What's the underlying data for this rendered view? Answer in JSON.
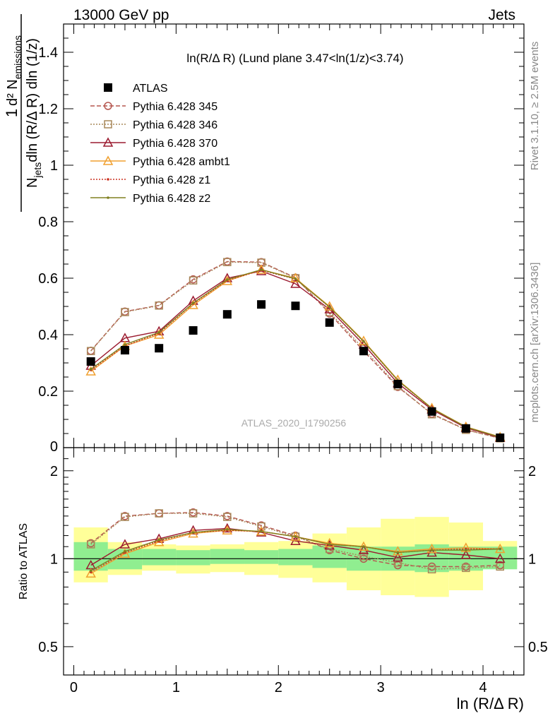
{
  "header": {
    "left": "13000 GeV pp",
    "right": "Jets",
    "side_top": "Rivet 3.1.10, ≥ 2.5M events",
    "side_bottom": "mcplots.cern.ch [arXiv:1306.3436]"
  },
  "chart_data": [
    {
      "type": "scatter",
      "title": "ln(R/Δ R) (Lund plane 3.47<ln(1/z)<3.74)",
      "ylabel": "1/N_jets dln (R/Δ R) dln (1/z) d² N_emissions",
      "xlabel": "ln (R/Δ R)",
      "watermark": "ATLAS_2020_I1790256",
      "xlim": [
        -0.1,
        4.4
      ],
      "ylim": [
        0,
        1.5
      ],
      "yticks": [
        0.2,
        0.4,
        0.6,
        0.8,
        1,
        1.2,
        1.4
      ],
      "legend_position": "top-left",
      "x": [
        0.167,
        0.5,
        0.833,
        1.167,
        1.5,
        1.833,
        2.167,
        2.5,
        2.833,
        3.167,
        3.5,
        3.833,
        4.167
      ],
      "series": [
        {
          "name": "ATLAS",
          "color": "#000000",
          "marker": "square",
          "line": "none",
          "values": [
            0.305,
            0.345,
            0.352,
            0.415,
            0.472,
            0.507,
            0.502,
            0.443,
            0.342,
            0.225,
            0.128,
            0.068,
            0.035
          ]
        },
        {
          "name": "Pythia 6.428 345",
          "color": "#b5564f",
          "marker": "circle",
          "line": "dashed",
          "values": [
            0.343,
            0.482,
            0.504,
            0.596,
            0.659,
            0.657,
            0.602,
            0.475,
            0.342,
            0.215,
            0.12,
            0.064,
            0.033
          ]
        },
        {
          "name": "Pythia 6.428 346",
          "color": "#a8885a",
          "marker": "square-open",
          "line": "dotted",
          "values": [
            0.342,
            0.48,
            0.503,
            0.592,
            0.657,
            0.655,
            0.6,
            0.48,
            0.35,
            0.218,
            0.118,
            0.063,
            0.033
          ]
        },
        {
          "name": "Pythia 6.428 370",
          "color": "#9b1b30",
          "marker": "triangle",
          "line": "solid",
          "values": [
            0.29,
            0.388,
            0.412,
            0.52,
            0.6,
            0.625,
            0.58,
            0.49,
            0.365,
            0.228,
            0.135,
            0.07,
            0.035
          ]
        },
        {
          "name": "Pythia 6.428 ambt1",
          "color": "#f0a030",
          "marker": "triangle",
          "line": "solid",
          "values": [
            0.27,
            0.36,
            0.4,
            0.505,
            0.59,
            0.63,
            0.6,
            0.5,
            0.378,
            0.24,
            0.14,
            0.074,
            0.038
          ]
        },
        {
          "name": "Pythia 6.428 z1",
          "color": "#cc3322",
          "marker": "dot",
          "line": "dotted",
          "values": [
            0.275,
            0.36,
            0.405,
            0.51,
            0.592,
            0.628,
            0.597,
            0.497,
            0.375,
            0.237,
            0.138,
            0.073,
            0.037
          ]
        },
        {
          "name": "Pythia 6.428 z2",
          "color": "#808020",
          "marker": "dot",
          "line": "solid",
          "values": [
            0.278,
            0.365,
            0.408,
            0.512,
            0.595,
            0.63,
            0.598,
            0.498,
            0.376,
            0.238,
            0.139,
            0.073,
            0.037
          ]
        }
      ]
    },
    {
      "type": "line",
      "ylabel": "Ratio to ATLAS",
      "xlabel": "ln (R/Δ R)",
      "ylim": [
        0.4,
        2.4
      ],
      "ylog": true,
      "yticks": [
        0.5,
        1,
        2
      ],
      "xticks": [
        0,
        1,
        2,
        3,
        4
      ],
      "band_edges": [
        0.0,
        0.333,
        0.667,
        1.0,
        1.333,
        1.667,
        2.0,
        2.333,
        2.667,
        3.0,
        3.333,
        3.667,
        4.0,
        4.333
      ],
      "band_inner": [
        [
          0.91,
          1.14
        ],
        [
          0.92,
          1.08
        ],
        [
          0.95,
          1.08
        ],
        [
          0.95,
          1.07
        ],
        [
          0.96,
          1.08
        ],
        [
          0.96,
          1.07
        ],
        [
          0.95,
          1.08
        ],
        [
          0.93,
          1.11
        ],
        [
          0.91,
          1.1
        ],
        [
          0.91,
          1.1
        ],
        [
          0.9,
          1.12
        ],
        [
          0.91,
          1.1
        ],
        [
          0.92,
          1.1
        ]
      ],
      "band_outer": [
        [
          0.83,
          1.28
        ],
        [
          0.88,
          1.14
        ],
        [
          0.91,
          1.12
        ],
        [
          0.89,
          1.11
        ],
        [
          0.9,
          1.12
        ],
        [
          0.88,
          1.14
        ],
        [
          0.86,
          1.15
        ],
        [
          0.83,
          1.22
        ],
        [
          0.78,
          1.28
        ],
        [
          0.75,
          1.37
        ],
        [
          0.74,
          1.39
        ],
        [
          0.78,
          1.33
        ],
        [
          0.94,
          1.15
        ]
      ],
      "series": [
        {
          "name": "Pythia 6.428 345",
          "color": "#b5564f",
          "marker": "circle",
          "line": "dashed",
          "values": [
            1.13,
            1.4,
            1.43,
            1.44,
            1.4,
            1.3,
            1.2,
            1.07,
            1.0,
            0.95,
            0.94,
            0.94,
            0.95
          ]
        },
        {
          "name": "Pythia 6.428 346",
          "color": "#a8885a",
          "marker": "square-open",
          "line": "dotted",
          "values": [
            1.12,
            1.39,
            1.43,
            1.43,
            1.39,
            1.29,
            1.19,
            1.08,
            1.02,
            0.97,
            0.92,
            0.93,
            0.94
          ]
        },
        {
          "name": "Pythia 6.428 370",
          "color": "#9b1b30",
          "marker": "triangle",
          "line": "solid",
          "values": [
            0.95,
            1.12,
            1.17,
            1.25,
            1.27,
            1.23,
            1.15,
            1.11,
            1.07,
            1.01,
            1.05,
            1.03,
            1.0
          ]
        },
        {
          "name": "Pythia 6.428 ambt1",
          "color": "#f0a030",
          "marker": "triangle",
          "line": "solid",
          "values": [
            0.89,
            1.04,
            1.14,
            1.22,
            1.25,
            1.24,
            1.19,
            1.13,
            1.1,
            1.06,
            1.08,
            1.09,
            1.08
          ]
        },
        {
          "name": "Pythia 6.428 z1",
          "color": "#cc3322",
          "marker": "dot",
          "line": "dotted",
          "values": [
            0.9,
            1.05,
            1.15,
            1.23,
            1.25,
            1.24,
            1.19,
            1.12,
            1.1,
            1.05,
            1.07,
            1.08,
            1.08
          ]
        },
        {
          "name": "Pythia 6.428 z2",
          "color": "#808020",
          "marker": "dot",
          "line": "solid",
          "values": [
            0.91,
            1.06,
            1.16,
            1.23,
            1.26,
            1.24,
            1.19,
            1.12,
            1.1,
            1.05,
            1.07,
            1.07,
            1.08
          ]
        }
      ]
    }
  ],
  "colors": {
    "band_inner": "#90ee90",
    "band_outer": "#ffff99"
  }
}
